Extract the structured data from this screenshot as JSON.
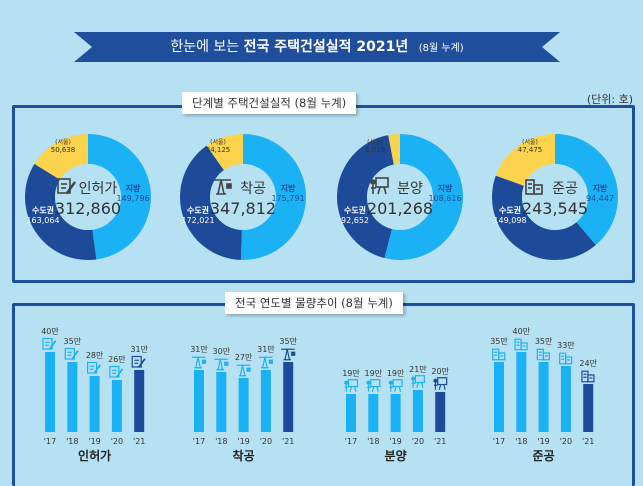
{
  "title": {
    "pre": "한눈에 보는",
    "bold": "전국 주택건설실적 2021년",
    "suffix": "(8월 누계)"
  },
  "unit": "(단위: 호)",
  "section1_title": "단계별 주택건설실적 (8월 누계)",
  "section2_title": "전국 연도별 물량추이 (8월 누계)",
  "colors": {
    "local": "#1ab2f4",
    "capital": "#1e4a9a",
    "seoul": "#fcd34c",
    "bar": "#1ab2f4",
    "bar_current": "#1e4a9a"
  },
  "chart_data": [
    {
      "type": "pie",
      "variant": "donut",
      "items": [
        {
          "stage": "인허가",
          "icon": "document-pen-icon",
          "total": "312,860",
          "local_label": "지방",
          "local": 149796,
          "local_text": "149,796",
          "capital_label": "수도권",
          "capital": 163064,
          "capital_text": "163,064",
          "seoul_label": "(서울)",
          "seoul": 50638,
          "seoul_text": "50,638"
        },
        {
          "stage": "착공",
          "icon": "crane-icon",
          "total": "347,812",
          "local_label": "지방",
          "local": 175791,
          "local_text": "175,791",
          "capital_label": "수도권",
          "capital": 172021,
          "capital_text": "172,021",
          "seoul_label": "(서울)",
          "seoul": 34125,
          "seoul_text": "34,125"
        },
        {
          "stage": "분양",
          "icon": "presenter-board-icon",
          "total": "201,268",
          "local_label": "지방",
          "local": 108616,
          "local_text": "108,616",
          "capital_label": "수도권",
          "capital": 92652,
          "capital_text": "92,652",
          "seoul_label": "(서울)",
          "seoul": 6018,
          "seoul_text": "6,018"
        },
        {
          "stage": "준공",
          "icon": "buildings-icon",
          "total": "243,545",
          "local_label": "지방",
          "local": 94447,
          "local_text": "94,447",
          "capital_label": "수도권",
          "capital": 149098,
          "capital_text": "149,098",
          "seoul_label": "(서울)",
          "seoul": 47475,
          "seoul_text": "47,475"
        }
      ]
    },
    {
      "type": "bar",
      "categories": [
        "'17",
        "'18",
        "'19",
        "'20",
        "'21"
      ],
      "unit": "만",
      "groups": [
        {
          "name": "인허가",
          "values": [
            40,
            35,
            28,
            26,
            31
          ],
          "labels": [
            "40만",
            "35만",
            "28만",
            "26만",
            "31만"
          ]
        },
        {
          "name": "착공",
          "values": [
            31,
            30,
            27,
            31,
            35
          ],
          "labels": [
            "31만",
            "30만",
            "27만",
            "31만",
            "35만"
          ]
        },
        {
          "name": "분양",
          "values": [
            19,
            19,
            19,
            21,
            20
          ],
          "labels": [
            "19만",
            "19만",
            "19만",
            "21만",
            "20만"
          ]
        },
        {
          "name": "준공",
          "values": [
            35,
            40,
            35,
            33,
            24
          ],
          "labels": [
            "35만",
            "40만",
            "35만",
            "33만",
            "24만"
          ]
        }
      ]
    }
  ]
}
